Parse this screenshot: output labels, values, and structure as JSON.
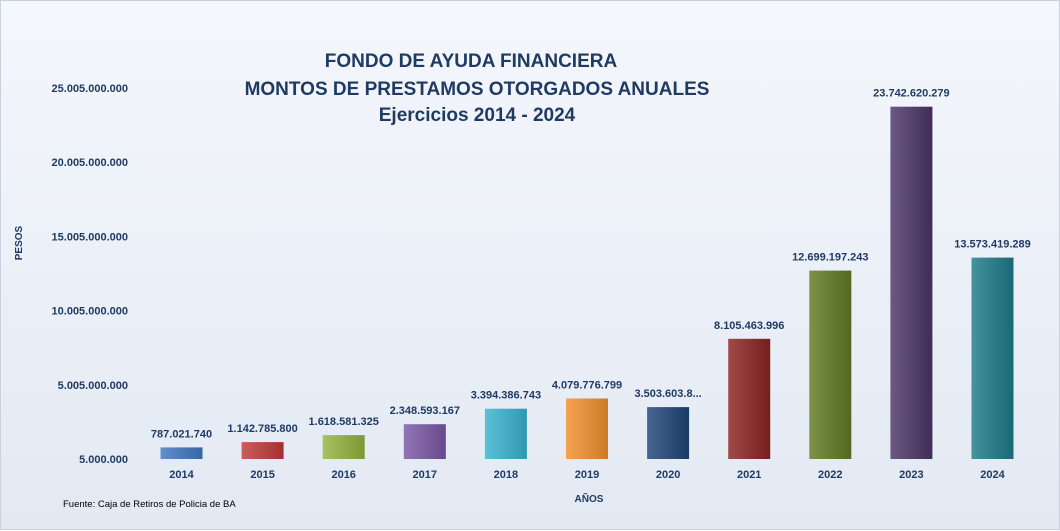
{
  "chart_data": {
    "type": "bar",
    "title_lines": [
      "FONDO DE AYUDA FINANCIERA",
      "MONTOS  DE  PRESTAMOS  OTORGADOS  ANUALES",
      "Ejercicios  2014 - 2024"
    ],
    "xlabel": "AÑOS",
    "ylabel": "PESOS",
    "source": "Fuente: Caja de Retiros de Policia de BA",
    "categories": [
      "2014",
      "2015",
      "2016",
      "2017",
      "2018",
      "2019",
      "2020",
      "2021",
      "2022",
      "2023",
      "2024"
    ],
    "values": [
      787021740,
      1142785800,
      1618581325,
      2348593167,
      3394386743,
      4079776799,
      3503603800,
      8105463996,
      12699197243,
      23742620279,
      13573419289
    ],
    "data_labels": [
      "787.021.740",
      "1.142.785.800",
      "1.618.581.325",
      "2.348.593.167",
      "3.394.386.743",
      "4.079.776.799",
      "3.503.603.8...",
      "8.105.463.996",
      "12.699.197.243",
      "23.742.620.279",
      "13.573.419.289"
    ],
    "y_ticks": [
      5000000,
      5005000000,
      10005000000,
      15005000000,
      20005000000,
      25005000000
    ],
    "y_tick_labels": [
      "5.000.000",
      "5.005.000.000",
      "10.005.000.000",
      "15.005.000.000",
      "20.005.000.000",
      "25.005.000.000"
    ],
    "ylim": [
      5000000,
      25005000000
    ],
    "grid": false,
    "legend": "none",
    "colors": [
      "#3f78c2",
      "#c0393a",
      "#93b43e",
      "#7a57a5",
      "#37b3d0",
      "#f2902c",
      "#1e4377",
      "#8b2222",
      "#5f7a22",
      "#4a3566",
      "#1d7a8a"
    ]
  }
}
